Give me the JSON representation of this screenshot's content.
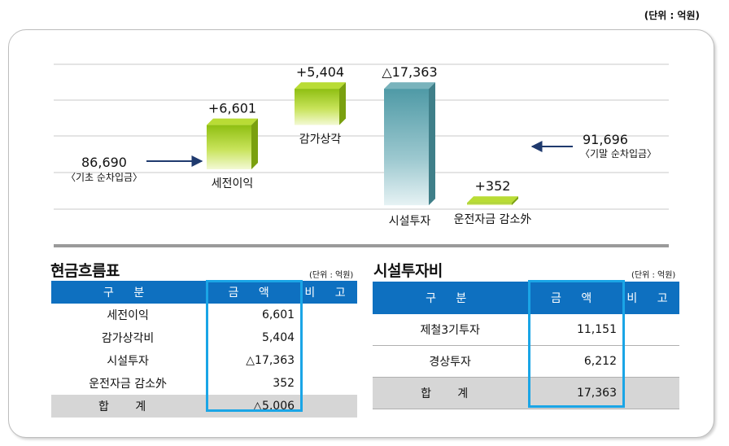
{
  "unit_top": "(단위 : 억원)",
  "chart_data": {
    "type": "bar",
    "subtype": "waterfall",
    "start": {
      "value": "86,690",
      "label": "〈기초 순차입금〉"
    },
    "end": {
      "value": "91,696",
      "label": "〈기말 순차입금〉"
    },
    "categories": [
      "세전이익",
      "감가상각",
      "시설투자",
      "운전자금 감소外"
    ],
    "values": [
      6601,
      5404,
      -17363,
      352
    ],
    "data_labels": [
      "+6,601",
      "+5,404",
      "△17,363",
      "+352"
    ],
    "colors": {
      "positive": "#a8cf1c",
      "negative": "#5ba0ab"
    },
    "grid": true
  },
  "cash_flow": {
    "title": "현금흐름표",
    "unit": "(단위 : 억원)",
    "headers": [
      "구 분",
      "금 액",
      "비 고"
    ],
    "rows": [
      {
        "label": "세전이익",
        "amount": "6,601"
      },
      {
        "label": "감가상각비",
        "amount": "5,404"
      },
      {
        "label": "시설투자",
        "amount": "△17,363"
      },
      {
        "label": "운전자금 감소外",
        "amount": "352"
      }
    ],
    "total": {
      "label": "합 계",
      "amount": "△5,006"
    }
  },
  "capex": {
    "title": "시설투자비",
    "unit": "(단위 : 억원)",
    "headers": [
      "구 분",
      "금 액",
      "비 고"
    ],
    "rows": [
      {
        "label": "제철3기투자",
        "amount": "11,151"
      },
      {
        "label": "경상투자",
        "amount": "6,212"
      }
    ],
    "total": {
      "label": "합 계",
      "amount": "17,363"
    }
  }
}
